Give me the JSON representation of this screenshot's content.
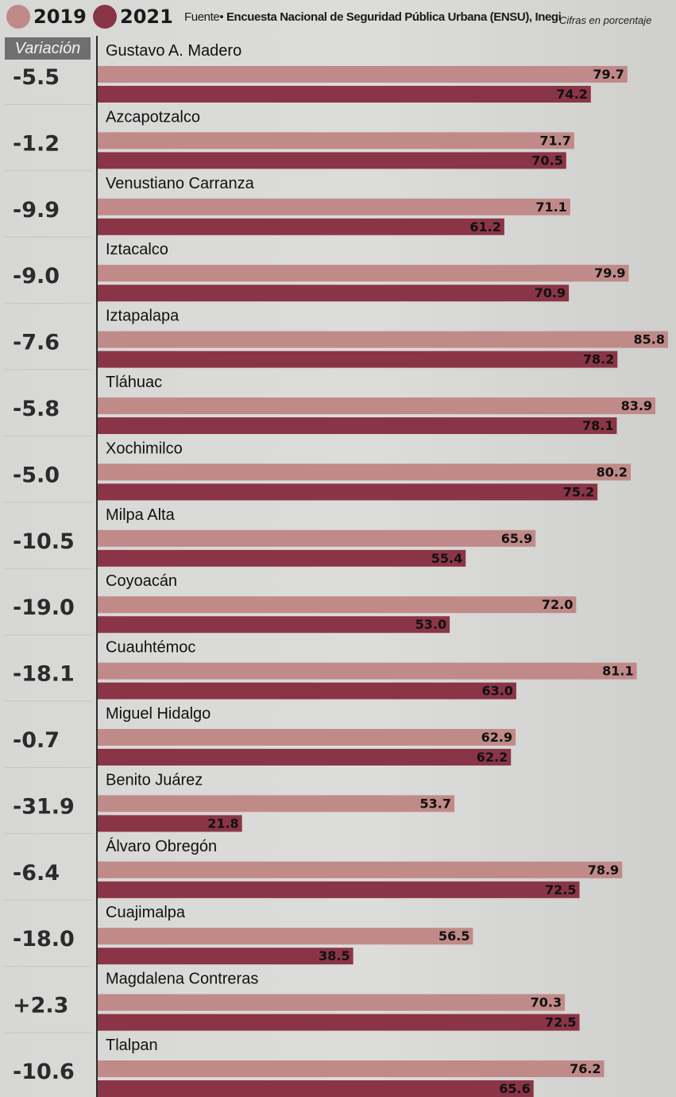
{
  "legend": {
    "items": [
      {
        "label": "2019",
        "color": "#c08a88"
      },
      {
        "label": "2021",
        "color": "#8a3546"
      }
    ]
  },
  "source": {
    "prefix": "Fuente",
    "text": "Encuesta Nacional de Seguridad Pública Urbana (ENSU), Inegi"
  },
  "units_note": "Cifras en porcentaje",
  "variation_header": "Variación",
  "chart_data": {
    "type": "bar",
    "orientation": "horizontal",
    "categories": [
      "Gustavo A. Madero",
      "Azcapotzalco",
      "Venustiano Carranza",
      "Iztacalco",
      "Iztapalapa",
      "Tláhuac",
      "Xochimilco",
      "Milpa Alta",
      "Coyoacán",
      "Cuauhtémoc",
      "Miguel Hidalgo",
      "Benito Juárez",
      "Álvaro Obregón",
      "Cuajimalpa",
      "Magdalena Contreras",
      "Tlalpan"
    ],
    "series": [
      {
        "name": "2019",
        "color": "#c08a88",
        "values": [
          79.7,
          71.7,
          71.1,
          79.9,
          85.8,
          83.9,
          80.2,
          65.9,
          72.0,
          81.1,
          62.9,
          53.7,
          78.9,
          56.5,
          70.3,
          76.2
        ]
      },
      {
        "name": "2021",
        "color": "#8a3546",
        "values": [
          74.2,
          70.5,
          61.2,
          70.9,
          78.2,
          78.1,
          75.2,
          55.4,
          53.0,
          63.0,
          62.2,
          21.8,
          72.5,
          38.5,
          72.5,
          65.6
        ]
      }
    ],
    "value_labels_2019": [
      "79.7",
      "71.7",
      "71.1",
      "79.9",
      "85.8",
      "83.9",
      "80.2",
      "65.9",
      "72.0",
      "81.1",
      "62.9",
      "53.7",
      "78.9",
      "56.5",
      "70.3",
      "76.2"
    ],
    "value_labels_2021": [
      "74.2",
      "70.5",
      "61.2",
      "70.9",
      "78.2",
      "78.1",
      "75.2",
      "55.4",
      "53.0",
      "63.0",
      "62.2",
      "21.8",
      "72.5",
      "38.5",
      "72.5",
      "65.6"
    ],
    "variation": [
      "-5.5",
      "-1.2",
      "-9.9",
      "-9.0",
      "-7.6",
      "-5.8",
      "-5.0",
      "-10.5",
      "-19.0",
      "-18.1",
      "-0.7",
      "-31.9",
      "-6.4",
      "-18.0",
      "+2.3",
      "-10.6"
    ],
    "xlim": [
      0,
      85.8
    ],
    "grid": false,
    "legend_position": "top-left"
  }
}
